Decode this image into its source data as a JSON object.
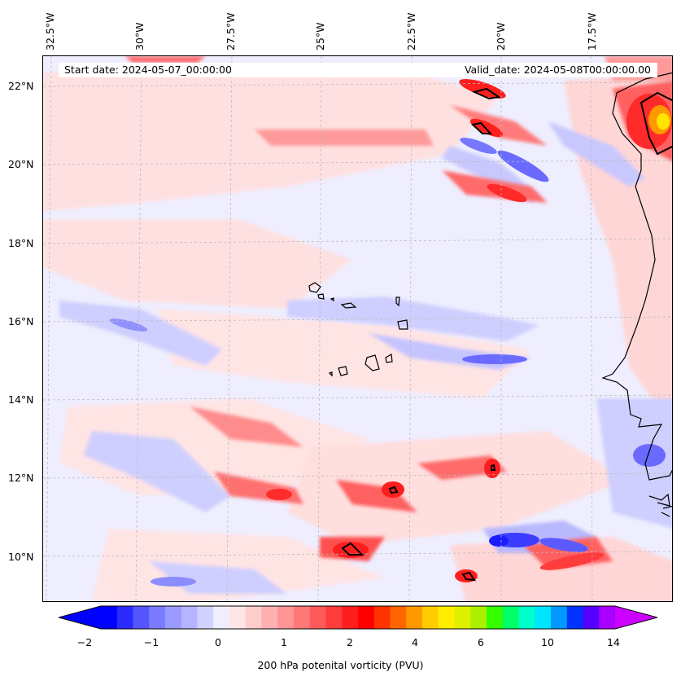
{
  "header": {
    "start_date": "Start date: 2024-05-07_00:00:00",
    "valid_date": "Valid_date: 2024-05-08T00:00:00.00"
  },
  "axes": {
    "lon_labels": [
      "32.5°W",
      "30°W",
      "27.5°W",
      "25°W",
      "22.5°W",
      "20°W",
      "17.5°W"
    ],
    "lat_labels": [
      "22°N",
      "20°N",
      "18°N",
      "16°N",
      "14°N",
      "12°N",
      "10°N"
    ]
  },
  "colorbar": {
    "label": "200 hPa potenital vorticity (PVU)",
    "ticks": [
      "−2",
      "−1",
      "0",
      "1",
      "2",
      "4",
      "6",
      "10",
      "14"
    ],
    "colors": [
      "#0000ff",
      "#2a2aff",
      "#5555ff",
      "#7b7bff",
      "#9a9aff",
      "#b4b4ff",
      "#d2d2ff",
      "#eeeeff",
      "#ffe6e6",
      "#ffcccc",
      "#ffb0b0",
      "#ff9494",
      "#ff7878",
      "#ff5a5a",
      "#ff3c3c",
      "#ff1e1e",
      "#ff0000",
      "#ff3300",
      "#ff6600",
      "#ff9900",
      "#ffcc00",
      "#ffee00",
      "#ddf000",
      "#aaf000",
      "#33ff00",
      "#00ff66",
      "#00ffcc",
      "#00e5ff",
      "#0099ff",
      "#0033ff",
      "#5500ff",
      "#aa00ff"
    ],
    "min_color": "#0000ff",
    "max_color": "#cc00ff"
  },
  "palette": {
    "background": "#eeeeff",
    "light_red": "#ffd6d6",
    "mid_red": "#ff8a8a",
    "red": "#ff2a2a",
    "light_blue": "#c8c8ff",
    "blue": "#6a6aff",
    "deep_blue": "#1c1cff",
    "yellow": "#ffe600"
  }
}
